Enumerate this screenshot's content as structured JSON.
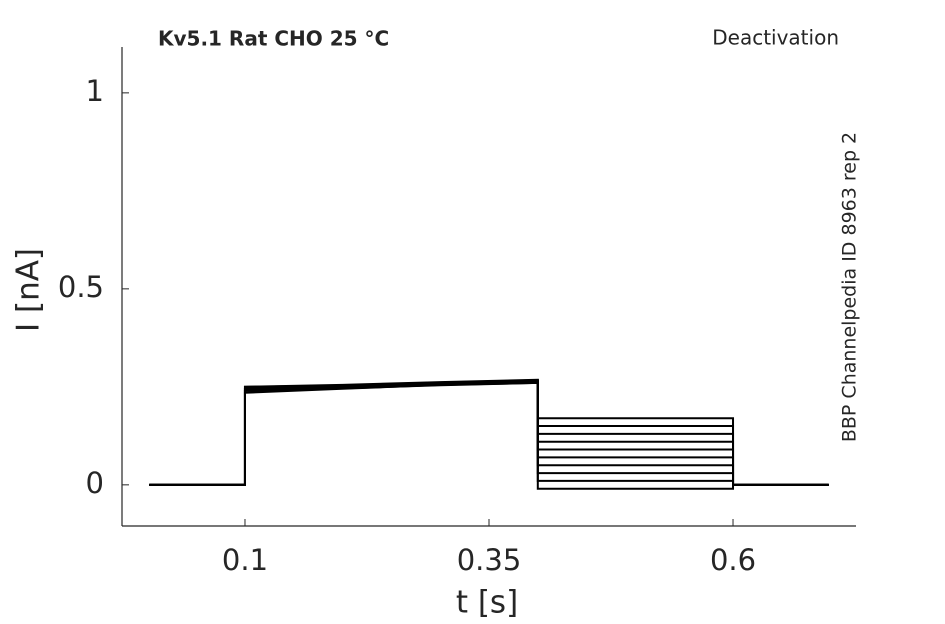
{
  "chart_data": {
    "type": "line",
    "title": "Kv5.1  Rat  CHO  25 °C",
    "annotation": "Deactivation",
    "side_note": "BBP Channelpedia ID 8963 rep 2",
    "x_label": "t [s]",
    "y_label": "I [nA]",
    "color": "#000000",
    "x": [
      0.002,
      0.1,
      0.1,
      0.2,
      0.3,
      0.4,
      0.4,
      0.6,
      0.6,
      0.698
    ],
    "series": [
      {
        "values": [
          0,
          0,
          0.25,
          0.255,
          0.262,
          0.268,
          0.17,
          0.17,
          0,
          0
        ]
      },
      {
        "values": [
          0,
          0,
          0.245,
          0.25,
          0.258,
          0.265,
          0.15,
          0.15,
          0,
          0
        ]
      },
      {
        "values": [
          0,
          0,
          0.24,
          0.248,
          0.256,
          0.262,
          0.13,
          0.13,
          0,
          0
        ]
      },
      {
        "values": [
          0,
          0,
          0.25,
          0.252,
          0.26,
          0.266,
          0.11,
          0.11,
          0,
          0
        ]
      },
      {
        "values": [
          0,
          0,
          0.235,
          0.245,
          0.255,
          0.26,
          0.09,
          0.09,
          0,
          0
        ]
      },
      {
        "values": [
          0,
          0,
          0.245,
          0.25,
          0.258,
          0.264,
          0.07,
          0.07,
          0,
          0
        ]
      },
      {
        "values": [
          0,
          0,
          0.24,
          0.247,
          0.255,
          0.262,
          0.05,
          0.05,
          0,
          0
        ]
      },
      {
        "values": [
          0,
          0,
          0.25,
          0.253,
          0.261,
          0.267,
          0.03,
          0.03,
          0,
          0
        ]
      },
      {
        "values": [
          0,
          0,
          0.24,
          0.246,
          0.254,
          0.26,
          0.01,
          0.01,
          0,
          0
        ]
      },
      {
        "values": [
          0,
          0,
          0.245,
          0.25,
          0.257,
          0.263,
          -0.01,
          -0.01,
          0,
          0
        ]
      }
    ],
    "xlim": [
      -0.026,
      0.726
    ],
    "ylim": [
      -0.105,
      1.117
    ],
    "xticks": [
      0.1,
      0.35,
      0.6
    ],
    "yticks": [
      0,
      0.5,
      1
    ],
    "grid": false
  }
}
